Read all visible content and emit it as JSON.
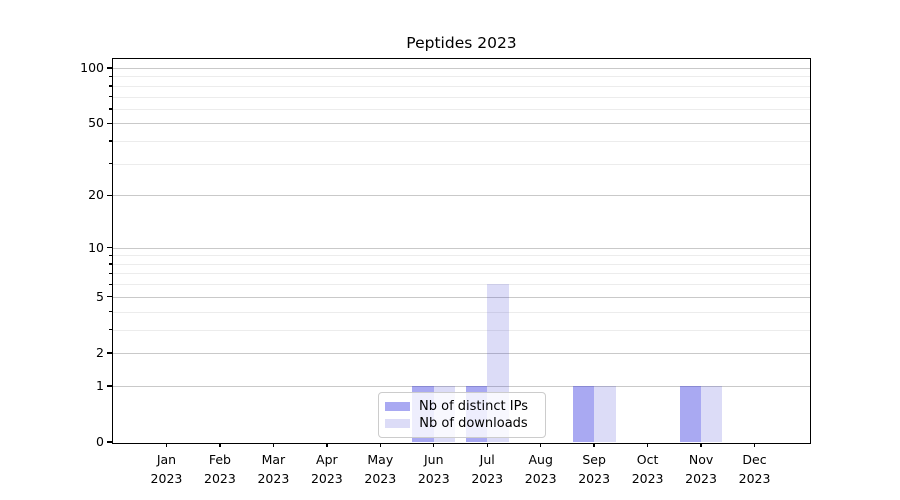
{
  "chart_data": {
    "type": "bar",
    "title": "Peptides 2023",
    "categories": [
      "Jan",
      "Feb",
      "Mar",
      "Apr",
      "May",
      "Jun",
      "Jul",
      "Aug",
      "Sep",
      "Oct",
      "Nov",
      "Dec"
    ],
    "category_year": "2023",
    "series": [
      {
        "name": "Nb of distinct IPs",
        "color": "rgba(50,50,224,0.42)",
        "values": [
          0,
          0,
          0,
          0,
          0,
          1,
          1,
          0,
          1,
          0,
          1,
          0
        ]
      },
      {
        "name": "Nb of downloads",
        "color": "rgba(36,36,203,0.16)",
        "values": [
          0,
          0,
          0,
          0,
          0,
          1,
          6,
          0,
          1,
          0,
          1,
          0
        ]
      }
    ],
    "y_axis": {
      "scale": "log1p",
      "major_ticks": [
        0,
        1,
        2,
        5,
        10,
        20,
        50,
        100
      ],
      "minor_ticks": [
        3,
        4,
        6,
        7,
        8,
        9,
        30,
        40,
        60,
        70,
        80,
        90
      ],
      "top_value": 115
    },
    "x_axis": {
      "label_format": "month over year"
    },
    "legend": {
      "position": "lower center",
      "frame": true
    },
    "style": {
      "major_grid_color": "#c9c9c9",
      "minor_grid_color": "#ececec",
      "spine_color": "#000000",
      "background": "#ffffff"
    }
  }
}
